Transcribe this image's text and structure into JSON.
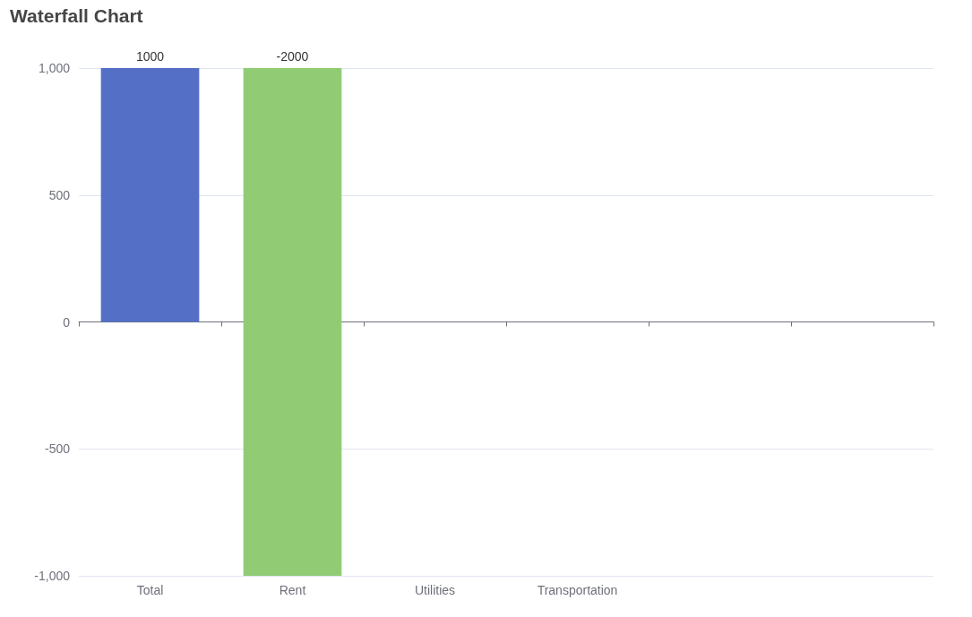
{
  "chart_data": {
    "type": "bar",
    "title": "Waterfall Chart",
    "categories": [
      "Total",
      "Rent",
      "Utilities",
      "Transportation",
      null,
      null
    ],
    "values": [
      1000,
      -2000,
      null,
      null,
      null,
      null
    ],
    "base": [
      0,
      1000,
      null,
      null,
      null,
      null
    ],
    "colors": [
      "#5470c6",
      "#91cc75",
      null,
      null,
      null,
      null
    ],
    "ylim": [
      -1000,
      1000
    ],
    "yticks": [
      {
        "value": -1000,
        "label": "-1,000"
      },
      -500,
      0,
      500,
      {
        "value": 1000,
        "label": "1,000"
      }
    ],
    "grid": "y",
    "data_labels": true
  }
}
